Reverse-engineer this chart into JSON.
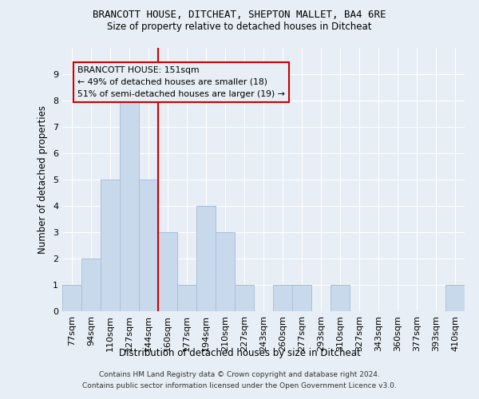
{
  "title1": "BRANCOTT HOUSE, DITCHEAT, SHEPTON MALLET, BA4 6RE",
  "title2": "Size of property relative to detached houses in Ditcheat",
  "xlabel": "Distribution of detached houses by size in Ditcheat",
  "ylabel": "Number of detached properties",
  "categories": [
    "77sqm",
    "94sqm",
    "110sqm",
    "127sqm",
    "144sqm",
    "160sqm",
    "177sqm",
    "194sqm",
    "210sqm",
    "227sqm",
    "243sqm",
    "260sqm",
    "277sqm",
    "293sqm",
    "310sqm",
    "327sqm",
    "343sqm",
    "360sqm",
    "377sqm",
    "393sqm",
    "410sqm"
  ],
  "values": [
    1,
    2,
    5,
    8,
    5,
    3,
    1,
    4,
    3,
    1,
    0,
    1,
    1,
    0,
    1,
    0,
    0,
    0,
    0,
    0,
    1
  ],
  "bar_color": "#c9d9ec",
  "bar_edgecolor": "#a8c0d8",
  "vline_x_index": 4.5,
  "vline_color": "#cc0000",
  "annotation_text": "BRANCOTT HOUSE: 151sqm\n← 49% of detached houses are smaller (18)\n51% of semi-detached houses are larger (19) →",
  "annotation_box_edgecolor": "#cc0000",
  "ylim": [
    0,
    10
  ],
  "yticks": [
    0,
    1,
    2,
    3,
    4,
    5,
    6,
    7,
    8,
    9
  ],
  "background_color": "#e8eef5",
  "grid_color": "#ffffff",
  "footer": "Contains HM Land Registry data © Crown copyright and database right 2024.\nContains public sector information licensed under the Open Government Licence v3.0."
}
